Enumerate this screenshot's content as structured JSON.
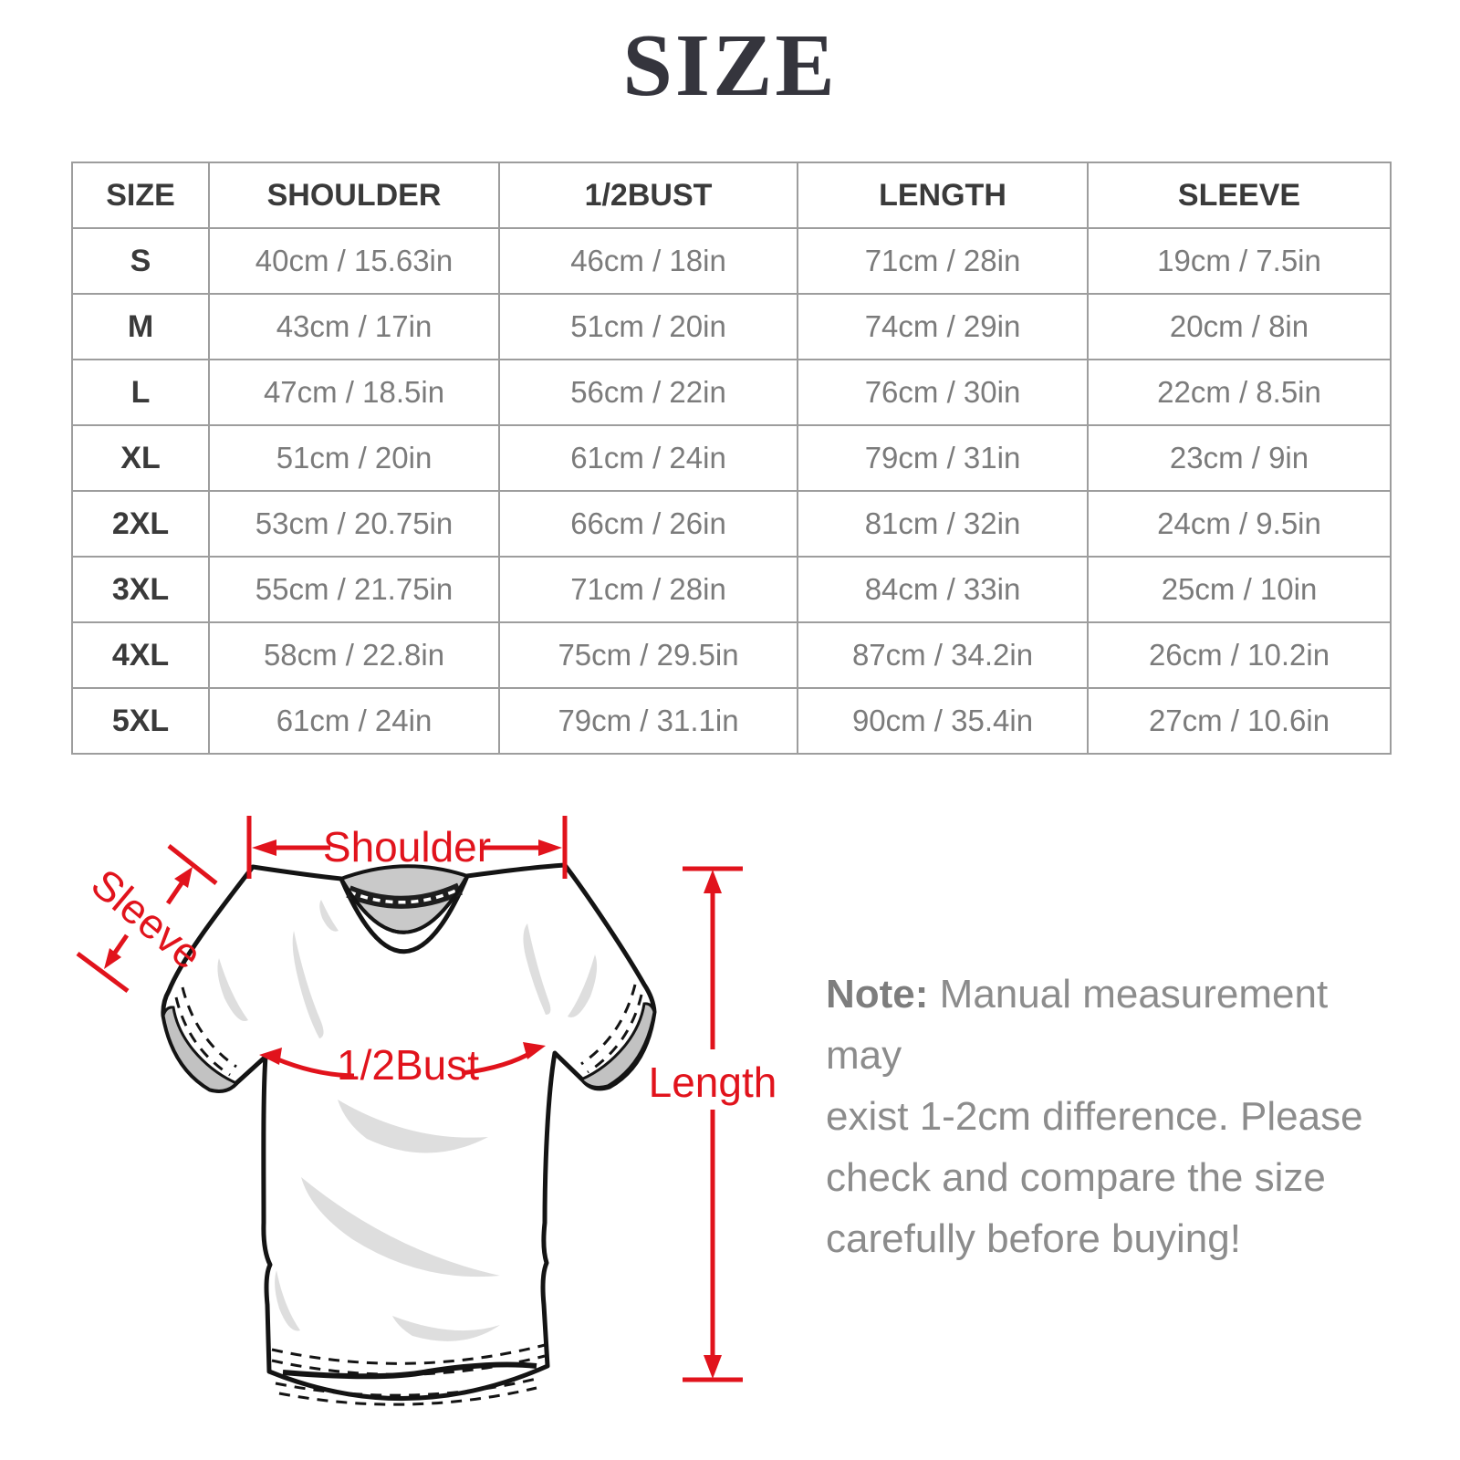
{
  "title": "SIZE",
  "table": {
    "headers": [
      "SIZE",
      "SHOULDER",
      "1/2BUST",
      "LENGTH",
      "SLEEVE"
    ],
    "rows": [
      {
        "size": "S",
        "shoulder": "40cm / 15.63in",
        "bust": "46cm / 18in",
        "length": "71cm / 28in",
        "sleeve": "19cm / 7.5in"
      },
      {
        "size": "M",
        "shoulder": "43cm / 17in",
        "bust": "51cm / 20in",
        "length": "74cm / 29in",
        "sleeve": "20cm / 8in"
      },
      {
        "size": "L",
        "shoulder": "47cm / 18.5in",
        "bust": "56cm / 22in",
        "length": "76cm / 30in",
        "sleeve": "22cm / 8.5in"
      },
      {
        "size": "XL",
        "shoulder": "51cm / 20in",
        "bust": "61cm / 24in",
        "length": "79cm / 31in",
        "sleeve": "23cm / 9in"
      },
      {
        "size": "2XL",
        "shoulder": "53cm / 20.75in",
        "bust": "66cm / 26in",
        "length": "81cm / 32in",
        "sleeve": "24cm / 9.5in"
      },
      {
        "size": "3XL",
        "shoulder": "55cm / 21.75in",
        "bust": "71cm / 28in",
        "length": "84cm / 33in",
        "sleeve": "25cm / 10in"
      },
      {
        "size": "4XL",
        "shoulder": "58cm / 22.8in",
        "bust": "75cm / 29.5in",
        "length": "87cm / 34.2in",
        "sleeve": "26cm / 10.2in"
      },
      {
        "size": "5XL",
        "shoulder": "61cm / 24in",
        "bust": "79cm / 31.1in",
        "length": "90cm / 35.4in",
        "sleeve": "27cm / 10.6in"
      }
    ]
  },
  "diagram": {
    "shoulder_label": "Shoulder",
    "sleeve_label": "Sleeve",
    "bust_label": "1/2Bust",
    "length_label": "Length"
  },
  "note": {
    "label": "Note:",
    "lines": [
      "Manual measurement may",
      "exist 1-2cm difference. Please",
      "check and compare the size",
      "carefully before buying!"
    ]
  },
  "colors": {
    "annotation_red": "#e1131c",
    "title_text": "#35353d",
    "table_border": "#9d9d9d",
    "header_text": "#3a3a3a",
    "cell_text": "#7b7b7b",
    "note_text": "#8c8c8c",
    "collar_gray": "#c9c9c9",
    "shading_gray": "#dedede"
  }
}
